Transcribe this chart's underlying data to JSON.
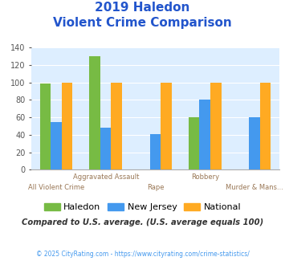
{
  "title_line1": "2019 Haledon",
  "title_line2": "Violent Crime Comparison",
  "categories": [
    "All Violent Crime",
    "Aggravated Assault",
    "Rape",
    "Robbery",
    "Murder & Mans..."
  ],
  "haledon": [
    99,
    130,
    0,
    60,
    0
  ],
  "new_jersey": [
    55,
    48,
    41,
    80,
    60
  ],
  "national": [
    100,
    100,
    100,
    100,
    100
  ],
  "haledon_color": "#77bb44",
  "new_jersey_color": "#4499ee",
  "national_color": "#ffaa22",
  "bg_color": "#ddeeff",
  "ylim": [
    0,
    140
  ],
  "yticks": [
    0,
    20,
    40,
    60,
    80,
    100,
    120,
    140
  ],
  "title_color": "#2255cc",
  "xlabel_color": "#997755",
  "footer_text": "Compared to U.S. average. (U.S. average equals 100)",
  "copyright_text": "© 2025 CityRating.com - https://www.cityrating.com/crime-statistics/",
  "footer_color": "#333333",
  "copyright_color": "#4499ee",
  "legend_labels": [
    "Haledon",
    "New Jersey",
    "National"
  ],
  "bar_width": 0.22
}
